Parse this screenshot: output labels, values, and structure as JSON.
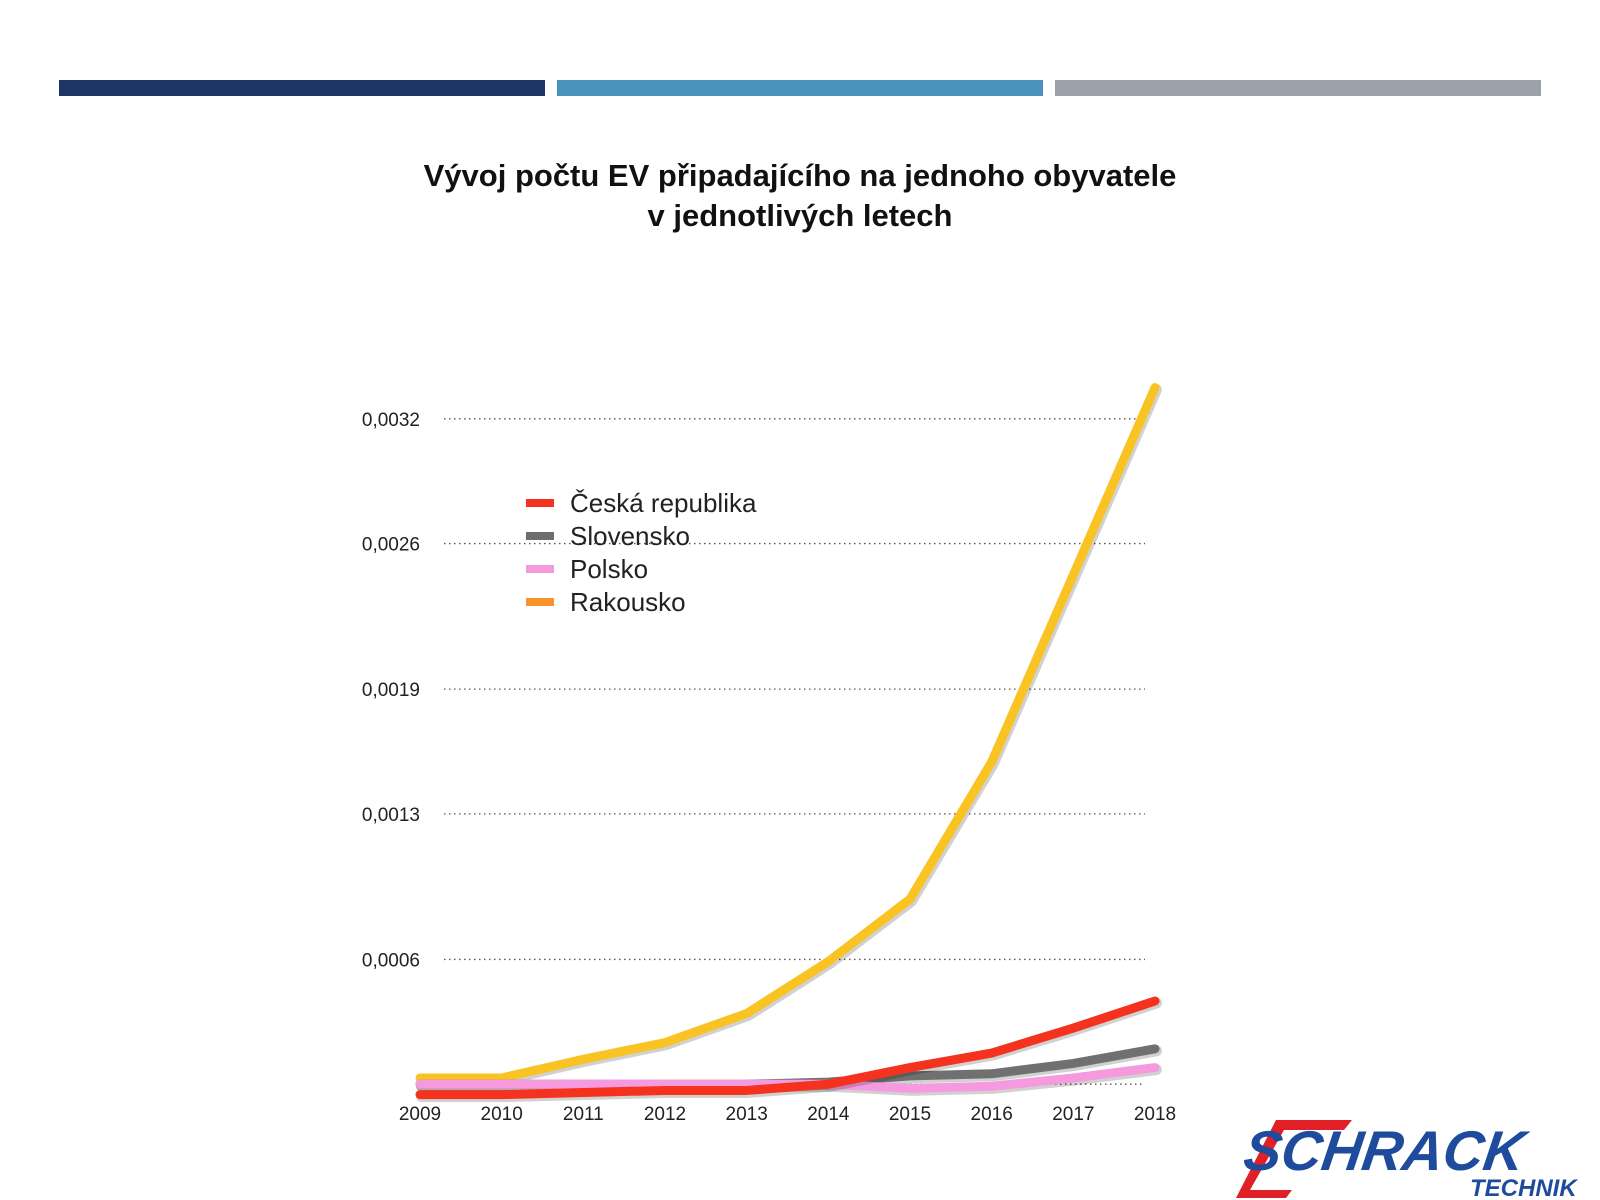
{
  "header": {
    "bar_colors": [
      "#1c3564",
      "#4a93bf",
      "#9aa1a9"
    ]
  },
  "title_lines": [
    "Vývoj počtu EV připadajícího na jednoho obyvatele",
    "v jednotlivých letech"
  ],
  "chart_data": {
    "type": "line",
    "x": [
      "2009",
      "2010",
      "2011",
      "2012",
      "2013",
      "2014",
      "2015",
      "2016",
      "2017",
      "2018"
    ],
    "y_ticks": [
      {
        "value": 0.0006,
        "label": "0,0006"
      },
      {
        "value": 0.0013,
        "label": "0,0013"
      },
      {
        "value": 0.0019,
        "label": "0,0019"
      },
      {
        "value": 0.0026,
        "label": "0,0026"
      },
      {
        "value": 0.0032,
        "label": "0,0032"
      }
    ],
    "ylim": [
      -0.0001,
      0.0033
    ],
    "grid": "horizontal-dotted",
    "legend_position": "top-left",
    "series": [
      {
        "name": "Rakousko",
        "color": "#f9c323",
        "legend_color": "#f7932a",
        "values": [
          3e-05,
          3e-05,
          0.00012,
          0.0002,
          0.00034,
          0.00059,
          0.00089,
          0.00155,
          0.00245,
          0.00335
        ]
      },
      {
        "name": "Slovensko",
        "color": "#707070",
        "legend_color": "#6e6e6e",
        "values": [
          0,
          0,
          0,
          0,
          0,
          1e-05,
          4e-05,
          5e-05,
          0.0001,
          0.00017
        ]
      },
      {
        "name": "Polsko",
        "color": "#f69ae0",
        "legend_color": "#f69ae0",
        "values": [
          0,
          0,
          0,
          0,
          0,
          0,
          -2e-05,
          -1e-05,
          3e-05,
          8e-05
        ]
      },
      {
        "name": "Česká republika",
        "color": "#f4321e",
        "legend_color": "#f4321e",
        "values": [
          -5e-05,
          -5e-05,
          -4e-05,
          -3e-05,
          -3e-05,
          0,
          8e-05,
          0.00015,
          0.00027,
          0.0004
        ]
      }
    ],
    "legend_order": [
      "Česká republika",
      "Slovensko",
      "Polsko",
      "Rakousko"
    ]
  },
  "logo": {
    "text_main": "SCHRACK",
    "text_sub": "TECHNIK",
    "color_main": "#1f4b9c",
    "color_accent": "#e01f26"
  }
}
